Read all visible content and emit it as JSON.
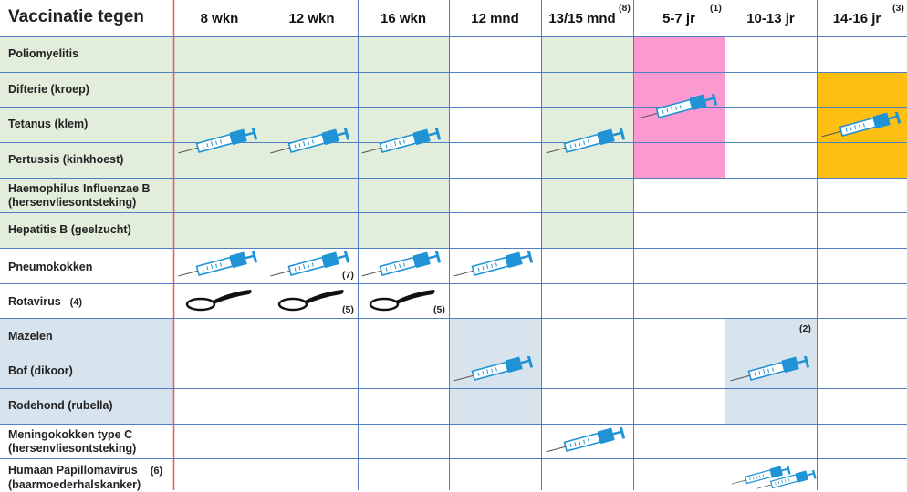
{
  "header": {
    "title": "Vaccinatie tegen",
    "columns": [
      {
        "label": "8 wkn",
        "note": ""
      },
      {
        "label": "12 wkn",
        "note": ""
      },
      {
        "label": "16 wkn",
        "note": ""
      },
      {
        "label": "12 mnd",
        "note": ""
      },
      {
        "label": "13/15 mnd",
        "note": "(8)"
      },
      {
        "label": "5-7 jr",
        "note": "(1)"
      },
      {
        "label": "10-13 jr",
        "note": ""
      },
      {
        "label": "14-16 jr",
        "note": "(3)"
      }
    ]
  },
  "rows": [
    {
      "line1": "Poliomyelitis",
      "line2": "",
      "note": ""
    },
    {
      "line1": "Difterie (kroep)",
      "line2": "",
      "note": ""
    },
    {
      "line1": "Tetanus (klem)",
      "line2": "",
      "note": ""
    },
    {
      "line1": "Pertussis (kinkhoest)",
      "line2": "",
      "note": ""
    },
    {
      "line1": "Haemophilus Influenzae B",
      "line2": "(hersenvliesontsteking)",
      "note": ""
    },
    {
      "line1": "Hepatitis B (geelzucht)",
      "line2": "",
      "note": ""
    },
    {
      "line1": "Pneumokokken",
      "line2": "",
      "note": ""
    },
    {
      "line1": "Rotavirus",
      "line2": "",
      "note": "(4)"
    },
    {
      "line1": "Mazelen",
      "line2": "",
      "note": ""
    },
    {
      "line1": "Bof (dikoor)",
      "line2": "",
      "note": ""
    },
    {
      "line1": "Rodehond (rubella)",
      "line2": "",
      "note": ""
    },
    {
      "line1": "Meningokokken type C",
      "line2": "(hersenvliesontsteking)",
      "note": ""
    },
    {
      "line1": "Humaan Papillomavirus",
      "line2": "(baarmoederhalskanker)",
      "note": "(6)"
    }
  ],
  "cell_notes": {
    "pneumo_12wkn": "(7)",
    "rota_12wkn": "(5)",
    "rota_16wkn": "(5)",
    "bmr_10_13": "(2)"
  },
  "colors": {
    "green": "#e2eedb",
    "pink": "#fa9ad1",
    "orange": "#fdbf12",
    "blue_fill": "#d7e3ed",
    "grid": "#4f7fc0",
    "red_line": "#e0605e",
    "syringe": "#1f93d6"
  },
  "icons": {
    "injection": "syringe-icon",
    "oral": "spoon-icon"
  }
}
